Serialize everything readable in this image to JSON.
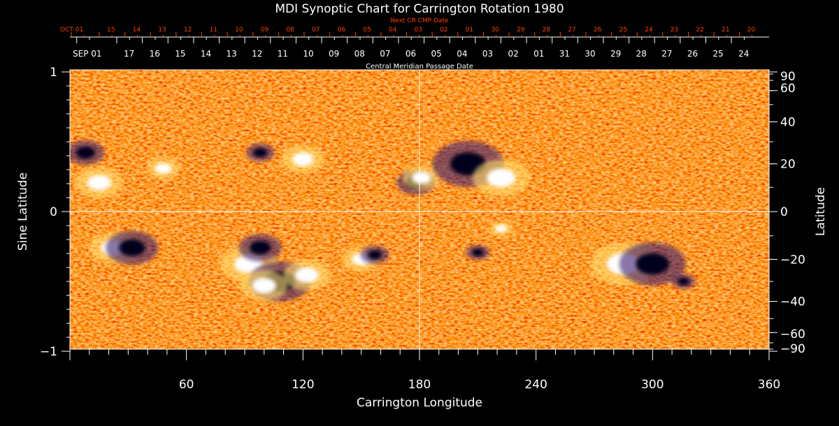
{
  "chart_data": {
    "type": "heatmap",
    "title": "MDI Synoptic Chart for Carrington Rotation 1980",
    "xlabel": "Carrington Longitude",
    "ylabel_left": "Sine Latitude",
    "ylabel_right": "Latitude",
    "top_axis_red_label": "Next CR CMP Date",
    "top_axis_white_label": "Central Meridian Passage Date",
    "xlim": [
      0,
      360
    ],
    "ylim": [
      -1,
      1
    ],
    "x_ticks": [
      "60",
      "120",
      "180",
      "240",
      "300",
      "360"
    ],
    "x_tick_values": [
      60,
      120,
      180,
      240,
      300,
      360
    ],
    "y_left_ticks": [
      {
        "v": 1,
        "label": "1"
      },
      {
        "v": 0,
        "label": "0"
      },
      {
        "v": -1,
        "label": "−1"
      }
    ],
    "y_right_ticks": [
      {
        "lat": 90,
        "label": "90"
      },
      {
        "lat": 60,
        "label": "60"
      },
      {
        "lat": 40,
        "label": "40"
      },
      {
        "lat": 20,
        "label": "20"
      },
      {
        "lat": 0,
        "label": "0"
      },
      {
        "lat": -20,
        "label": "−20"
      },
      {
        "lat": -40,
        "label": "−40"
      },
      {
        "lat": -60,
        "label": "−60"
      },
      {
        "lat": -90,
        "label": "−90"
      }
    ],
    "red_dates": [
      "OCT 01",
      "15",
      "14",
      "13",
      "12",
      "11",
      "10",
      "09",
      "08",
      "07",
      "06",
      "05",
      "04",
      "03",
      "02",
      "01",
      "30",
      "29",
      "28",
      "27",
      "26",
      "25",
      "24",
      "23",
      "22",
      "21",
      "20"
    ],
    "white_dates": [
      "SEP 01",
      "17",
      "16",
      "15",
      "14",
      "13",
      "12",
      "11",
      "10",
      "09",
      "08",
      "07",
      "06",
      "05",
      "04",
      "03",
      "02",
      "01",
      "31",
      "30",
      "29",
      "28",
      "27",
      "26",
      "25",
      "24"
    ],
    "grid_lines": {
      "longitude": 180,
      "sine_latitude": 0
    },
    "colors": {
      "background": "#ff5a00",
      "positive": "#ffffff",
      "negative": "#0a0a40",
      "axis": "#ffffff",
      "red_axis": "#ff4000"
    },
    "regions": [
      {
        "lon": 15,
        "lat": 12,
        "polarity": "positive",
        "size": 1.0
      },
      {
        "lon": 8,
        "lat": 25,
        "polarity": "negative",
        "size": 0.8
      },
      {
        "lon": 48,
        "lat": 18,
        "polarity": "positive",
        "size": 0.7
      },
      {
        "lon": 98,
        "lat": 25,
        "polarity": "negative",
        "size": 0.6
      },
      {
        "lon": 120,
        "lat": 22,
        "polarity": "positive",
        "size": 0.9
      },
      {
        "lon": 178,
        "lat": 12,
        "polarity": "negative",
        "size": 0.8
      },
      {
        "lon": 181,
        "lat": 14,
        "polarity": "positive",
        "size": 0.8
      },
      {
        "lon": 205,
        "lat": 20,
        "polarity": "negative",
        "size": 1.5
      },
      {
        "lon": 222,
        "lat": 14,
        "polarity": "positive",
        "size": 1.2
      },
      {
        "lon": 22,
        "lat": -15,
        "polarity": "positive",
        "size": 1.0
      },
      {
        "lon": 32,
        "lat": -15,
        "polarity": "negative",
        "size": 1.1
      },
      {
        "lon": 92,
        "lat": -22,
        "polarity": "positive",
        "size": 1.2
      },
      {
        "lon": 98,
        "lat": -15,
        "polarity": "negative",
        "size": 0.9
      },
      {
        "lon": 108,
        "lat": -30,
        "polarity": "negative",
        "size": 1.3
      },
      {
        "lon": 100,
        "lat": -32,
        "polarity": "positive",
        "size": 1.0
      },
      {
        "lon": 122,
        "lat": -27,
        "polarity": "positive",
        "size": 1.0
      },
      {
        "lon": 150,
        "lat": -20,
        "polarity": "positive",
        "size": 0.8
      },
      {
        "lon": 157,
        "lat": -18,
        "polarity": "negative",
        "size": 0.6
      },
      {
        "lon": 210,
        "lat": -17,
        "polarity": "negative",
        "size": 0.5
      },
      {
        "lon": 222,
        "lat": -7,
        "polarity": "positive",
        "size": 0.5
      },
      {
        "lon": 285,
        "lat": -22,
        "polarity": "positive",
        "size": 1.4
      },
      {
        "lon": 300,
        "lat": -22,
        "polarity": "negative",
        "size": 1.4
      },
      {
        "lon": 316,
        "lat": -30,
        "polarity": "negative",
        "size": 0.5
      }
    ]
  }
}
